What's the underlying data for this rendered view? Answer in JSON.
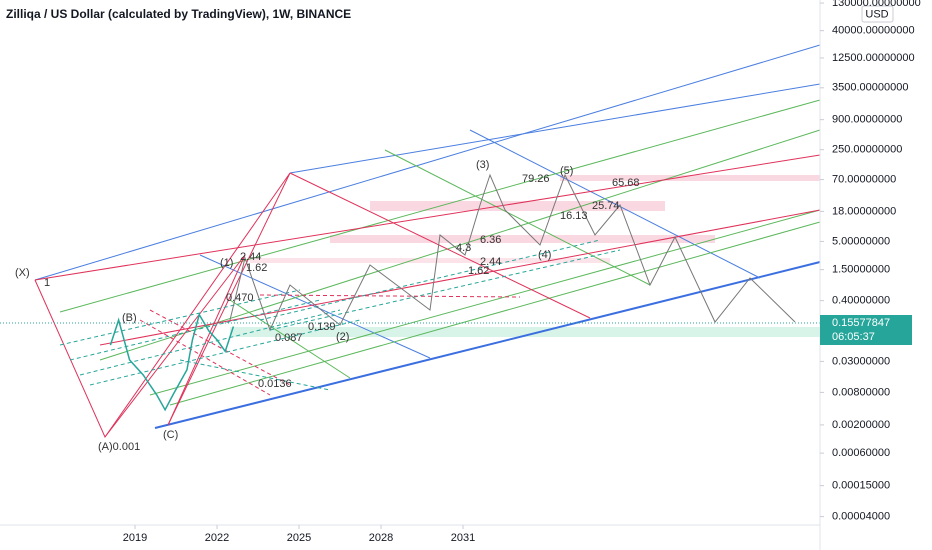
{
  "chart_data": {
    "type": "line",
    "title": "Zilliqa / US Dollar (calculated by TradingView), 1W, BINANCE",
    "currency": "USD",
    "log_scale": true,
    "x": [
      2018.1,
      2018.4,
      2018.8,
      2019.3,
      2019.8,
      2020.1,
      2020.4,
      2020.9,
      2021.1,
      2021.35,
      2021.7,
      2022.0,
      2022.3,
      2022.6
    ],
    "values": [
      0.06,
      0.175,
      0.032,
      0.0168,
      0.0071,
      0.0038,
      0.0074,
      0.021,
      0.075,
      0.22,
      0.11,
      0.075,
      0.046,
      0.133
    ],
    "color": "#26a69a",
    "last_price": 0.15577847,
    "countdown": "06:05:37",
    "xlim": [
      2014.06,
      2044.06
    ],
    "xticks": [
      2019,
      2022,
      2025,
      2028,
      2031
    ],
    "ylim": [
      2.8e-05,
      148000
    ],
    "yticks": [
      {
        "value": 130000,
        "label": "130000.00000000"
      },
      {
        "value": 40000,
        "label": "40000.00000000"
      },
      {
        "value": 12500,
        "label": "12500.00000000"
      },
      {
        "value": 3500,
        "label": "3500.00000000"
      },
      {
        "value": 900,
        "label": "900.00000000"
      },
      {
        "value": 250,
        "label": "250.00000000"
      },
      {
        "value": 70,
        "label": "70.00000000"
      },
      {
        "value": 18,
        "label": "18.00000000"
      },
      {
        "value": 5,
        "label": "5.00000000"
      },
      {
        "value": 1.5,
        "label": "1.50000000"
      },
      {
        "value": 0.4,
        "label": "0.40000000"
      },
      {
        "value": 0.03,
        "label": "0.03000000"
      },
      {
        "value": 0.008,
        "label": "0.00800000"
      },
      {
        "value": 0.002,
        "label": "0.00200000"
      },
      {
        "value": 0.0006,
        "label": "0.00060000"
      },
      {
        "value": 0.00015,
        "label": "0.00015000"
      },
      {
        "value": 4e-05,
        "label": "0.00004000"
      }
    ],
    "annotations": [
      "(X)",
      "1",
      "(A)0.001",
      "(B)",
      "(C)",
      "(1)",
      "2.44",
      "1.62",
      "0.470",
      "0.139",
      "0.087",
      "0.0136",
      "(2)",
      "(3)",
      "79.26",
      "(5)",
      "65.68",
      "16.13",
      "25.74",
      "6.36",
      "4.3",
      "2.44",
      "1.62",
      "(4)"
    ]
  }
}
